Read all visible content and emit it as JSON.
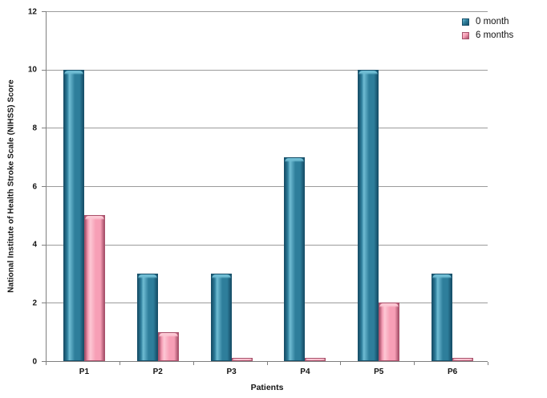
{
  "chart_data": {
    "type": "bar",
    "title": "",
    "xlabel": "Patients",
    "ylabel": "National Institute of Health Stroke Scale (NIHSS) Score",
    "categories": [
      "P1",
      "P2",
      "P3",
      "P4",
      "P5",
      "P6"
    ],
    "series": [
      {
        "name": "0 month",
        "values": [
          10,
          3,
          3,
          7,
          10,
          3
        ],
        "color": "#2e7e9b",
        "color_light": "#6fbcd3",
        "color_dark": "#17506a"
      },
      {
        "name": "6 months",
        "values": [
          5,
          1,
          0.1,
          0.1,
          2,
          0.1
        ],
        "color": "#f79fb6",
        "color_light": "#fcc8d4",
        "color_dark": "#a8516b"
      }
    ],
    "ylim": [
      0,
      12
    ],
    "yticks": [
      0,
      2,
      4,
      6,
      8,
      10,
      12
    ],
    "grid": true,
    "legend_position": "top-right"
  },
  "colors": {
    "background": "#ffffff",
    "gridline": "#9b9b9b",
    "axis": "#7f7f7f",
    "text": "#141414"
  }
}
